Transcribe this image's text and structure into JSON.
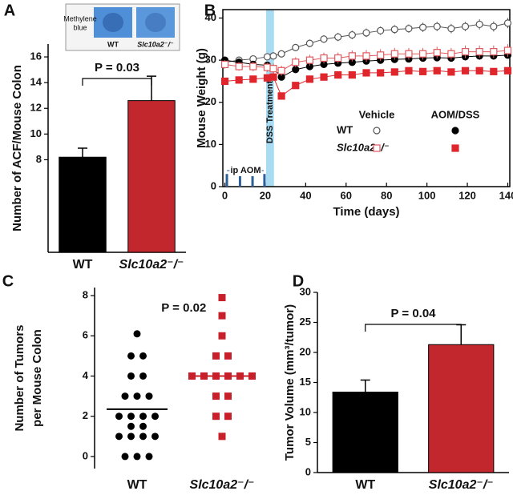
{
  "chart_data": [
    {
      "type": "bar",
      "panel": "A",
      "ylabel": "Number of ACF/Mouse Colon",
      "categories": [
        "WT",
        "Slc10a2⁻/⁻"
      ],
      "values": [
        8.2,
        12.6
      ],
      "errors": [
        0.7,
        1.9
      ],
      "colors": [
        "#000000",
        "#c1272d"
      ],
      "ylim": [
        0.8,
        17
      ],
      "yticks": [
        8,
        10,
        12,
        14,
        16
      ],
      "annotation": "P = 0.03",
      "inset": {
        "label": [
          "Methylene",
          "blue"
        ],
        "captions": [
          "WT",
          "Slc10a2⁻/⁻"
        ]
      }
    },
    {
      "type": "line",
      "panel": "B",
      "xlabel": "Time (days)",
      "ylabel": "Mouse Weight (g)",
      "x": [
        0,
        7,
        14,
        21,
        24,
        28,
        35,
        42,
        49,
        56,
        63,
        70,
        77,
        84,
        91,
        98,
        105,
        112,
        119,
        126,
        133,
        140
      ],
      "xlim": [
        -1,
        141
      ],
      "xticks": [
        0,
        20,
        40,
        60,
        80,
        100,
        120,
        140
      ],
      "ylim": [
        0,
        42
      ],
      "yticks": [
        0,
        10,
        20,
        30,
        40
      ],
      "shaded_band": {
        "label": "DSS Treatment",
        "xrange": [
          20.4,
          24.3
        ]
      },
      "injections": {
        "label": "ip AOM",
        "x": [
          1,
          7.5,
          13.7,
          19.6
        ],
        "height": 3
      },
      "legend": {
        "columns": [
          "Vehicle",
          "AOM/DSS"
        ],
        "rows": [
          "WT",
          "Slc10a2⁻/⁻"
        ]
      },
      "series": [
        {
          "row": 0,
          "col": 0,
          "marker": "circle",
          "filled": false,
          "color": "#555555",
          "values": [
            29.5,
            30,
            30.3,
            30.8,
            31,
            31.5,
            33,
            34,
            35,
            35.5,
            36,
            36.5,
            37,
            37.3,
            37.5,
            37.8,
            38,
            37.5,
            38,
            38.5,
            38,
            38.8
          ],
          "errors": [
            0.6,
            0.6,
            0.7,
            0.7,
            0.7,
            0.8,
            0.8,
            0.9,
            0.9,
            1,
            1,
            1,
            1,
            1,
            1,
            1.1,
            1.1,
            1.1,
            1.1,
            1.2,
            1.2,
            1.2
          ]
        },
        {
          "row": 0,
          "col": 1,
          "marker": "circle",
          "filled": true,
          "color": "#000000",
          "values": [
            30,
            29.5,
            29,
            28.8,
            28,
            26,
            27.8,
            28.5,
            29,
            29.3,
            29.5,
            29.8,
            30,
            30.2,
            30.3,
            30.5,
            30.6,
            30.5,
            30.8,
            31,
            31,
            31.2
          ],
          "errors": [
            0.5,
            0.5,
            0.5,
            0.6,
            0.6,
            0.7,
            0.6,
            0.6,
            0.6,
            0.6,
            0.6,
            0.7,
            0.7,
            0.7,
            0.7,
            0.7,
            0.7,
            0.7,
            0.8,
            0.8,
            0.8,
            0.8
          ]
        },
        {
          "row": 1,
          "col": 0,
          "marker": "square",
          "filled": false,
          "color": "#e05a5f",
          "values": [
            29,
            28.5,
            28.5,
            28.3,
            28,
            27.5,
            29.5,
            30,
            30.5,
            30.5,
            31,
            31,
            31.2,
            31.5,
            31.5,
            31.5,
            31.8,
            31.5,
            32,
            32,
            32,
            32.3
          ],
          "errors": [
            1,
            1,
            1.1,
            1.1,
            1.2,
            1.2,
            1.2,
            1.3,
            1.3,
            1.3,
            1.3,
            1.4,
            1.4,
            1.4,
            1.4,
            1.4,
            1.4,
            1.4,
            1.5,
            1.5,
            1.5,
            1.5
          ]
        },
        {
          "row": 1,
          "col": 1,
          "marker": "square",
          "filled": true,
          "color": "#e0262d",
          "values": [
            25,
            25.3,
            25.5,
            25.8,
            26,
            21.5,
            24,
            25.5,
            26,
            26.5,
            26.5,
            27,
            27,
            27.2,
            27.5,
            27.3,
            27.5,
            27.2,
            27.5,
            27.5,
            27.3,
            27.5
          ],
          "errors": [
            0.4,
            0.4,
            0.4,
            0.4,
            0.5,
            0.6,
            0.5,
            0.5,
            0.5,
            0.5,
            0.5,
            0.5,
            0.5,
            0.5,
            0.5,
            0.5,
            0.5,
            0.5,
            0.5,
            0.5,
            0.5,
            0.5
          ]
        }
      ]
    },
    {
      "type": "dot",
      "panel": "C",
      "ylabel": [
        "Number of Tumors",
        "per Mouse Colon"
      ],
      "ylim": [
        -0.6,
        8.4
      ],
      "yticks": [
        0,
        2,
        4,
        6,
        8
      ],
      "annotation": "P = 0.02",
      "groups": [
        {
          "name": "WT",
          "color": "#000000",
          "mean": 2.35,
          "values": [
            6.1,
            5,
            5,
            4,
            4,
            3,
            3,
            3,
            2,
            2,
            2,
            2,
            1.5,
            1.5,
            1,
            1,
            1,
            1,
            0,
            0,
            0
          ]
        },
        {
          "name": "Slc10a2⁻/⁻",
          "color": "#c8202a",
          "mean": 4,
          "values": [
            7.9,
            7,
            6,
            5,
            5,
            4,
            4,
            4,
            4,
            4,
            4,
            3,
            3,
            2,
            2,
            1
          ]
        }
      ]
    },
    {
      "type": "bar",
      "panel": "D",
      "ylabel": "Tumor Volume (mm³/tumor)",
      "categories": [
        "WT",
        "Slc10a2⁻/⁻"
      ],
      "values": [
        13.4,
        21.3
      ],
      "errors": [
        2,
        3.3
      ],
      "colors": [
        "#000000",
        "#c1272d"
      ],
      "ylim": [
        0,
        30
      ],
      "yticks": [
        0,
        5,
        10,
        15,
        20,
        25,
        30
      ],
      "annotation": "P = 0.04"
    }
  ]
}
